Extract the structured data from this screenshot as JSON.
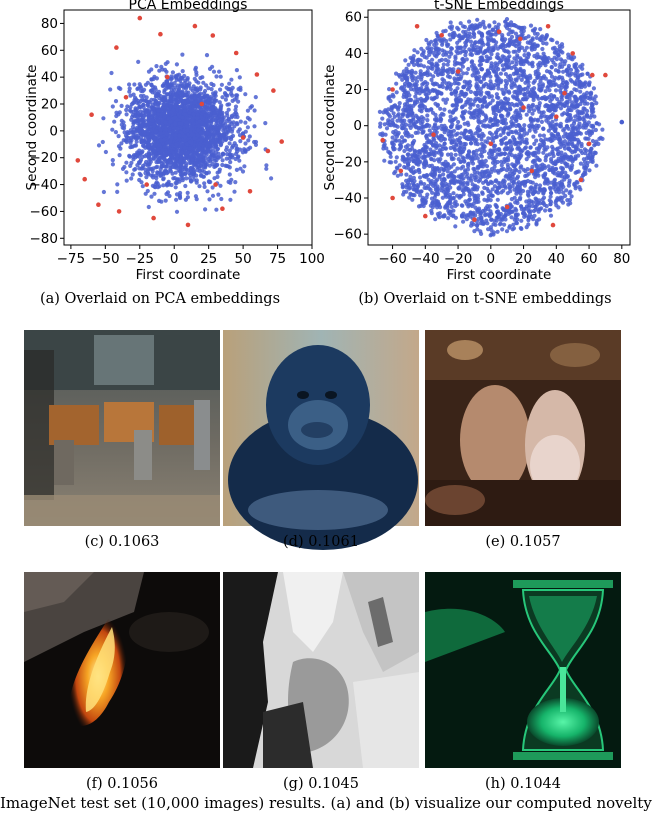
{
  "chart_data": [
    {
      "type": "scatter",
      "title": "PCA Embeddings",
      "xlabel": "First coordinate",
      "ylabel": "Second coordinate",
      "xlim": [
        -80,
        100
      ],
      "ylim": [
        -85,
        90
      ],
      "xticks": [
        -75,
        -50,
        -25,
        0,
        25,
        50,
        75,
        100
      ],
      "yticks": [
        -80,
        -60,
        -40,
        -20,
        0,
        20,
        40,
        60,
        80
      ],
      "series": [
        {
          "color": "#4a5fd0",
          "shape": "disc",
          "center": [
            5,
            0
          ],
          "spread": [
            32,
            30
          ],
          "count": 2600
        },
        {
          "color": "#e0483c",
          "points": [
            [
              -25,
              84
            ],
            [
              -42,
              62
            ],
            [
              -10,
              72
            ],
            [
              15,
              78
            ],
            [
              28,
              71
            ],
            [
              45,
              58
            ],
            [
              60,
              42
            ],
            [
              72,
              30
            ],
            [
              -60,
              12
            ],
            [
              -70,
              -22
            ],
            [
              -65,
              -36
            ],
            [
              -55,
              -55
            ],
            [
              -40,
              -60
            ],
            [
              -15,
              -65
            ],
            [
              10,
              -70
            ],
            [
              35,
              -58
            ],
            [
              55,
              -45
            ],
            [
              68,
              -15
            ],
            [
              50,
              -5
            ],
            [
              -20,
              -40
            ],
            [
              30,
              -40
            ],
            [
              -5,
              40
            ],
            [
              20,
              20
            ],
            [
              -35,
              25
            ],
            [
              78,
              -8
            ]
          ]
        }
      ]
    },
    {
      "type": "scatter",
      "title": "t-SNE Embeddings",
      "xlabel": "First coordinate",
      "ylabel": "Second coordinate",
      "xlim": [
        -75,
        85
      ],
      "ylim": [
        -66,
        64
      ],
      "xticks": [
        -60,
        -40,
        -20,
        0,
        20,
        40,
        60,
        80
      ],
      "yticks": [
        -60,
        -40,
        -20,
        0,
        20,
        40,
        60
      ],
      "series": [
        {
          "color": "#4a5fd0",
          "shape": "blob",
          "center": [
            0,
            0
          ],
          "spread": [
            68,
            60
          ],
          "count": 3200
        },
        {
          "color": "#e0483c",
          "points": [
            [
              -30,
              50
            ],
            [
              5,
              52
            ],
            [
              18,
              48
            ],
            [
              35,
              55
            ],
            [
              50,
              40
            ],
            [
              62,
              28
            ],
            [
              -60,
              20
            ],
            [
              -66,
              -8
            ],
            [
              -55,
              -25
            ],
            [
              -60,
              -40
            ],
            [
              -40,
              -50
            ],
            [
              -10,
              -52
            ],
            [
              10,
              -45
            ],
            [
              38,
              -55
            ],
            [
              55,
              -30
            ],
            [
              60,
              -10
            ],
            [
              20,
              10
            ],
            [
              -20,
              30
            ],
            [
              0,
              -10
            ],
            [
              -35,
              -5
            ],
            [
              45,
              18
            ],
            [
              70,
              28
            ],
            [
              -45,
              55
            ],
            [
              25,
              -25
            ],
            [
              40,
              5
            ]
          ]
        },
        {
          "color": "#4a5fd0",
          "points": [
            [
              80,
              2
            ]
          ]
        }
      ]
    }
  ],
  "captions": {
    "a": "(a) Overlaid on PCA embeddings",
    "b": "(b) Overlaid on t-SNE embeddings",
    "c": "(c) 0.1063",
    "d": "(d) 0.1061",
    "e": "(e) 0.1057",
    "f": "(f) 0.1056",
    "g": "(g) 0.1045",
    "h": "(h) 0.1044",
    "figure": "ImageNet test set (10,000 images) results. (a) and (b) visualize our computed novelty"
  },
  "colors": {
    "blue_points": "#4a5fd0",
    "red_points": "#e0483c"
  }
}
